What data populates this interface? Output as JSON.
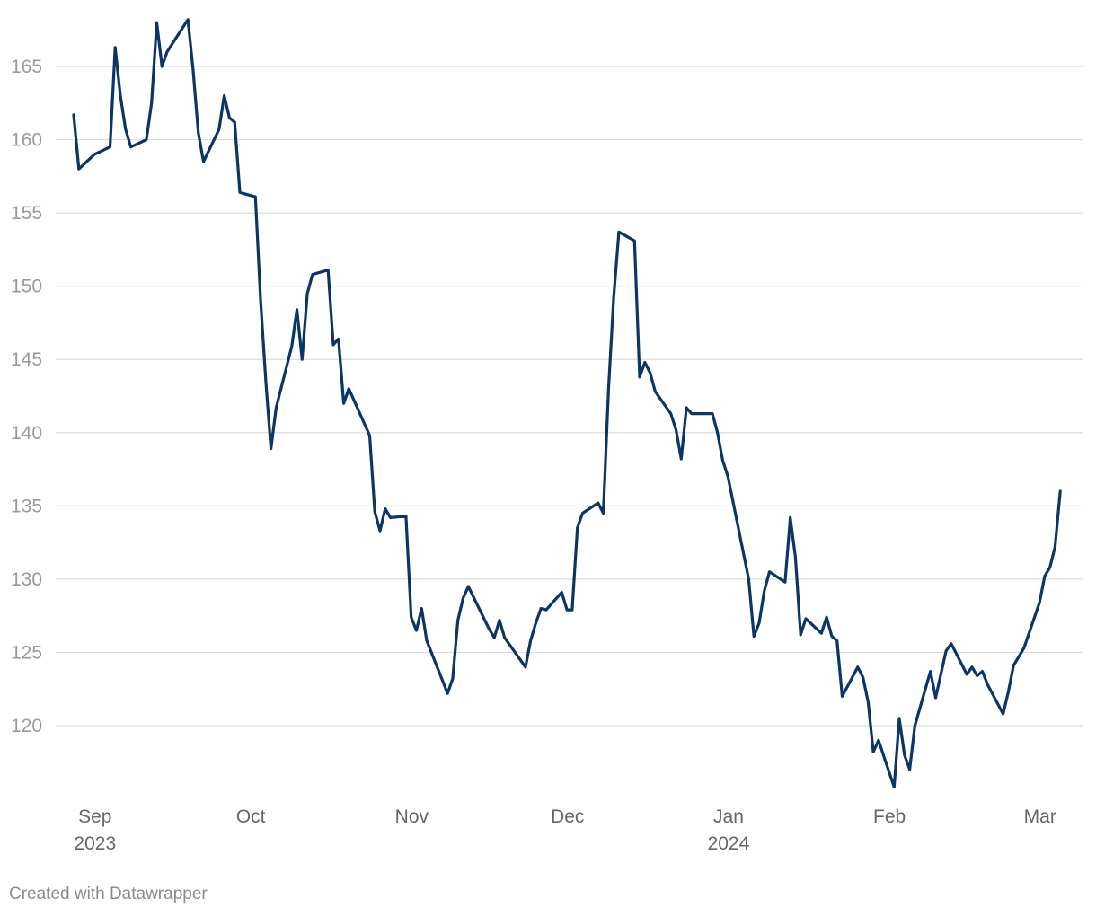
{
  "chart_data": {
    "type": "line",
    "title": "",
    "xlabel": "",
    "ylabel": "",
    "ylim": [
      115,
      168
    ],
    "xlim": [
      "2023-08-31",
      "2024-03-01"
    ],
    "grid": true,
    "line_color": "#0a3566",
    "y_ticks": [
      120,
      125,
      130,
      135,
      140,
      145,
      150,
      155,
      160,
      165
    ],
    "x_ticks": [
      {
        "date": "2023-09-01",
        "label": "Sep",
        "sublabel": "2023"
      },
      {
        "date": "2023-10-01",
        "label": "Oct",
        "sublabel": ""
      },
      {
        "date": "2023-11-01",
        "label": "Nov",
        "sublabel": ""
      },
      {
        "date": "2023-12-01",
        "label": "Dec",
        "sublabel": ""
      },
      {
        "date": "2024-01-01",
        "label": "Jan",
        "sublabel": "2024"
      },
      {
        "date": "2024-02-01",
        "label": "Feb",
        "sublabel": ""
      },
      {
        "date": "2024-03-01",
        "label": "Mar",
        "sublabel": ""
      }
    ],
    "series": [
      {
        "points": [
          [
            "2023-08-31",
            161.7
          ],
          [
            "2023-09-01",
            158.0
          ],
          [
            "2023-09-04",
            159.0
          ],
          [
            "2023-09-07",
            159.5
          ],
          [
            "2023-09-08",
            166.3
          ],
          [
            "2023-09-09",
            163.0
          ],
          [
            "2023-09-10",
            160.7
          ],
          [
            "2023-09-11",
            159.5
          ],
          [
            "2023-09-14",
            160.0
          ],
          [
            "2023-09-15",
            162.5
          ],
          [
            "2023-09-16",
            168.0
          ],
          [
            "2023-09-17",
            165.0
          ],
          [
            "2023-09-18",
            166.0
          ],
          [
            "2023-09-22",
            168.2
          ],
          [
            "2023-09-23",
            164.8
          ],
          [
            "2023-09-24",
            160.5
          ],
          [
            "2023-09-25",
            158.5
          ],
          [
            "2023-09-28",
            160.7
          ],
          [
            "2023-09-29",
            163.0
          ],
          [
            "2023-09-30",
            161.5
          ],
          [
            "2023-10-01",
            161.2
          ],
          [
            "2023-10-02",
            156.4
          ],
          [
            "2023-10-05",
            156.1
          ],
          [
            "2023-10-06",
            149.0
          ],
          [
            "2023-10-07",
            143.5
          ],
          [
            "2023-10-08",
            138.9
          ],
          [
            "2023-10-09",
            141.7
          ],
          [
            "2023-10-12",
            145.9
          ],
          [
            "2023-10-13",
            148.4
          ],
          [
            "2023-10-14",
            145.0
          ],
          [
            "2023-10-15",
            149.5
          ],
          [
            "2023-10-16",
            150.8
          ],
          [
            "2023-10-19",
            151.1
          ],
          [
            "2023-10-20",
            146.0
          ],
          [
            "2023-10-21",
            146.4
          ],
          [
            "2023-10-22",
            142.0
          ],
          [
            "2023-10-23",
            143.0
          ],
          [
            "2023-10-27",
            139.8
          ],
          [
            "2023-10-28",
            134.6
          ],
          [
            "2023-10-29",
            133.3
          ],
          [
            "2023-10-30",
            134.8
          ],
          [
            "2023-10-31",
            134.2
          ],
          [
            "2023-11-03",
            134.3
          ],
          [
            "2023-11-04",
            127.4
          ],
          [
            "2023-11-05",
            126.5
          ],
          [
            "2023-11-06",
            128.0
          ],
          [
            "2023-11-07",
            125.8
          ],
          [
            "2023-11-11",
            122.2
          ],
          [
            "2023-11-12",
            123.2
          ],
          [
            "2023-11-13",
            127.2
          ],
          [
            "2023-11-14",
            128.7
          ],
          [
            "2023-11-15",
            129.5
          ],
          [
            "2023-11-19",
            126.6
          ],
          [
            "2023-11-20",
            126.0
          ],
          [
            "2023-11-21",
            127.2
          ],
          [
            "2023-11-22",
            126.0
          ],
          [
            "2023-11-26",
            124.0
          ],
          [
            "2023-11-27",
            125.8
          ],
          [
            "2023-11-28",
            127.0
          ],
          [
            "2023-11-29",
            128.0
          ],
          [
            "2023-11-30",
            127.9
          ],
          [
            "2023-12-03",
            129.1
          ],
          [
            "2023-12-04",
            127.9
          ],
          [
            "2023-12-05",
            127.9
          ],
          [
            "2023-12-06",
            133.5
          ],
          [
            "2023-12-07",
            134.5
          ],
          [
            "2023-12-10",
            135.2
          ],
          [
            "2023-12-11",
            134.5
          ],
          [
            "2023-12-12",
            143.0
          ],
          [
            "2023-12-13",
            149.2
          ],
          [
            "2023-12-14",
            153.7
          ],
          [
            "2023-12-17",
            153.1
          ],
          [
            "2023-12-18",
            143.8
          ],
          [
            "2023-12-19",
            144.8
          ],
          [
            "2023-12-20",
            144.1
          ],
          [
            "2023-12-21",
            142.8
          ],
          [
            "2023-12-24",
            141.3
          ],
          [
            "2023-12-25",
            140.2
          ],
          [
            "2023-12-26",
            138.2
          ],
          [
            "2023-12-27",
            141.7
          ],
          [
            "2023-12-28",
            141.3
          ],
          [
            "2024-01-01",
            141.3
          ],
          [
            "2024-01-02",
            140.0
          ],
          [
            "2024-01-03",
            138.1
          ],
          [
            "2024-01-04",
            137.0
          ],
          [
            "2024-01-08",
            130.0
          ],
          [
            "2024-01-09",
            126.1
          ],
          [
            "2024-01-10",
            127.0
          ],
          [
            "2024-01-11",
            129.2
          ],
          [
            "2024-01-12",
            130.5
          ],
          [
            "2024-01-15",
            129.8
          ],
          [
            "2024-01-16",
            134.2
          ],
          [
            "2024-01-17",
            131.5
          ],
          [
            "2024-01-18",
            126.2
          ],
          [
            "2024-01-19",
            127.3
          ],
          [
            "2024-01-22",
            126.3
          ],
          [
            "2024-01-23",
            127.4
          ],
          [
            "2024-01-24",
            126.1
          ],
          [
            "2024-01-25",
            125.8
          ],
          [
            "2024-01-26",
            122.0
          ],
          [
            "2024-01-29",
            124.0
          ],
          [
            "2024-01-30",
            123.3
          ],
          [
            "2024-01-31",
            121.6
          ],
          [
            "2024-02-01",
            118.2
          ],
          [
            "2024-02-02",
            119.0
          ],
          [
            "2024-02-05",
            115.8
          ],
          [
            "2024-02-06",
            120.5
          ],
          [
            "2024-02-07",
            118.0
          ],
          [
            "2024-02-08",
            117.0
          ],
          [
            "2024-02-09",
            120.0
          ],
          [
            "2024-02-12",
            123.7
          ],
          [
            "2024-02-13",
            121.9
          ],
          [
            "2024-02-14",
            123.5
          ],
          [
            "2024-02-15",
            125.1
          ],
          [
            "2024-02-16",
            125.6
          ],
          [
            "2024-02-19",
            123.5
          ],
          [
            "2024-02-20",
            124.0
          ],
          [
            "2024-02-21",
            123.4
          ],
          [
            "2024-02-22",
            123.7
          ],
          [
            "2024-02-23",
            122.8
          ],
          [
            "2024-02-26",
            120.8
          ],
          [
            "2024-02-27",
            122.3
          ],
          [
            "2024-02-28",
            124.1
          ],
          [
            "2024-03-01",
            125.3
          ],
          [
            "2024-03-04",
            128.4
          ],
          [
            "2024-03-05",
            130.2
          ],
          [
            "2024-03-06",
            130.8
          ],
          [
            "2024-03-07",
            132.2
          ],
          [
            "2024-03-08",
            136.0
          ]
        ]
      }
    ]
  },
  "credit": "Created with Datawrapper"
}
